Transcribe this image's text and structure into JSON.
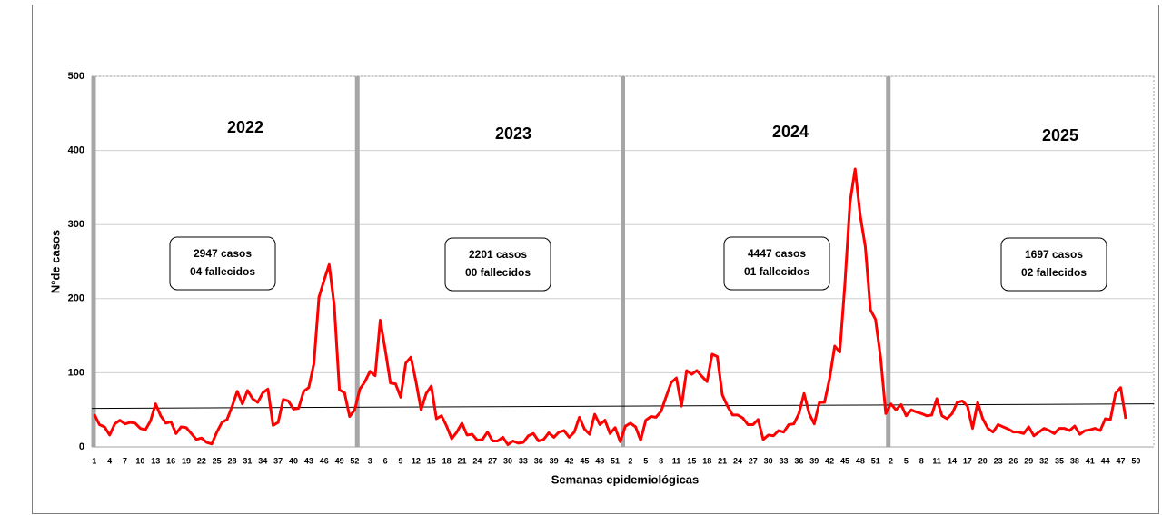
{
  "chart_data": {
    "type": "line",
    "x_label": "Semanas epidemiológicas",
    "y_label": "N°de casos",
    "ylim": [
      0,
      500
    ],
    "yticks": [
      0,
      100,
      200,
      300,
      400,
      500
    ],
    "grid": true,
    "categories": [
      "1",
      null,
      null,
      "4",
      null,
      null,
      "7",
      null,
      null,
      "10",
      null,
      null,
      "13",
      null,
      null,
      "16",
      null,
      null,
      "19",
      null,
      null,
      "22",
      null,
      null,
      "25",
      null,
      null,
      "28",
      null,
      null,
      "31",
      null,
      null,
      "34",
      null,
      null,
      "37",
      null,
      null,
      "40",
      null,
      null,
      "43",
      null,
      null,
      "46",
      null,
      null,
      "49",
      null,
      null,
      "52",
      null,
      null,
      "3",
      null,
      null,
      "6",
      null,
      null,
      "9",
      null,
      null,
      "12",
      null,
      null,
      "15",
      null,
      null,
      "18",
      null,
      null,
      "21",
      null,
      null,
      "24",
      null,
      null,
      "27",
      null,
      null,
      "30",
      null,
      null,
      "33",
      null,
      null,
      "36",
      null,
      null,
      "39",
      null,
      null,
      "42",
      null,
      null,
      "45",
      null,
      null,
      "48",
      null,
      null,
      "51",
      null,
      null,
      "2",
      null,
      null,
      "5",
      null,
      null,
      "8",
      null,
      null,
      "11",
      null,
      null,
      "15",
      null,
      null,
      "18",
      null,
      null,
      "21",
      null,
      null,
      "24",
      null,
      null,
      "27",
      null,
      null,
      "30",
      null,
      null,
      "33",
      null,
      null,
      "36",
      null,
      null,
      "39",
      null,
      null,
      "42",
      null,
      null,
      "45",
      null,
      null,
      "48",
      null,
      null,
      "51",
      null,
      null,
      "2",
      null,
      null,
      "5",
      null,
      null,
      "8",
      null,
      null,
      "11",
      null,
      null,
      "14",
      null,
      null,
      "17",
      null,
      null,
      "20",
      null,
      null,
      "23",
      null,
      null,
      "26",
      null,
      null,
      "29",
      null,
      null,
      "32",
      null,
      null,
      "35",
      null,
      null,
      "38",
      null,
      null,
      "41",
      null,
      null,
      "44",
      null,
      null,
      "47",
      null,
      null,
      "50",
      null,
      null,
      null
    ],
    "series": [
      {
        "color": "#ff0000",
        "values": [
          44,
          30,
          27,
          16,
          31,
          36,
          31,
          33,
          32,
          25,
          23,
          35,
          58,
          42,
          32,
          34,
          18,
          27,
          26,
          18,
          10,
          12,
          6,
          4,
          20,
          33,
          37,
          55,
          75,
          58,
          76,
          65,
          60,
          73,
          78,
          29,
          33,
          64,
          62,
          51,
          52,
          75,
          80,
          112,
          202,
          225,
          246,
          190,
          77,
          73,
          41,
          50,
          78,
          88,
          102,
          96,
          171,
          130,
          86,
          85,
          67,
          113,
          121,
          88,
          50,
          72,
          82,
          38,
          42,
          28,
          11,
          20,
          32,
          16,
          17,
          9,
          10,
          20,
          8,
          8,
          13,
          3,
          8,
          5,
          6,
          15,
          18,
          8,
          10,
          19,
          13,
          20,
          22,
          13,
          20,
          40,
          24,
          17,
          44,
          30,
          36,
          18,
          26,
          7,
          28,
          32,
          27,
          9,
          36,
          41,
          40,
          48,
          68,
          87,
          93,
          55,
          103,
          98,
          103,
          95,
          88,
          125,
          122,
          70,
          55,
          43,
          43,
          39,
          30,
          30,
          37,
          10,
          16,
          15,
          22,
          20,
          30,
          31,
          45,
          72,
          45,
          31,
          60,
          60,
          92,
          136,
          128,
          220,
          330,
          375,
          312,
          270,
          185,
          172,
          120,
          45,
          58,
          50,
          57,
          42,
          50,
          47,
          45,
          42,
          43,
          65,
          42,
          38,
          45,
          60,
          62,
          55,
          25,
          60,
          38,
          25,
          20,
          30,
          27,
          24,
          20,
          20,
          18,
          27,
          15,
          20,
          25,
          22,
          18,
          25,
          25,
          22,
          28,
          17,
          22,
          23,
          25,
          22,
          38,
          37,
          72,
          80,
          38,
          null,
          null,
          null,
          null,
          null
        ]
      }
    ],
    "reference_line": {
      "color": "#000000",
      "values": [
        52,
        58
      ]
    },
    "year_labels": [
      "2022",
      "2023",
      "2024",
      "2025"
    ],
    "annotations": [
      [
        "2947 casos",
        "04 fallecidos"
      ],
      [
        "2201 casos",
        "00 fallecidos"
      ],
      [
        "4447 casos",
        "01 fallecidos"
      ],
      [
        "1697 casos",
        "02 fallecidos"
      ]
    ]
  }
}
